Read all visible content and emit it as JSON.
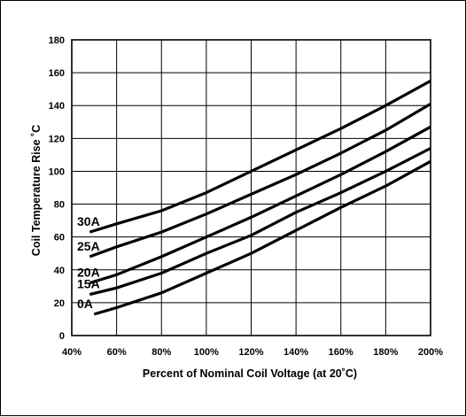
{
  "chart_data": {
    "type": "line",
    "title": "",
    "xlabel": "Percent of Nominal Coil Voltage (at 20˚C)",
    "ylabel": "Coil Temperature Rise ˚C",
    "x_ticks": [
      40,
      60,
      80,
      100,
      120,
      140,
      160,
      180,
      200
    ],
    "x_tick_labels": [
      "40%",
      "60%",
      "80%",
      "100%",
      "120%",
      "140%",
      "160%",
      "180%",
      "200%"
    ],
    "y_ticks": [
      0,
      20,
      40,
      60,
      80,
      100,
      120,
      140,
      160,
      180
    ],
    "y_tick_labels": [
      "0",
      "20",
      "40",
      "60",
      "80",
      "100",
      "120",
      "140",
      "160",
      "180"
    ],
    "xlim": [
      40,
      200
    ],
    "ylim": [
      0,
      180
    ],
    "grid": true,
    "legend": "none",
    "series": [
      {
        "name": "30A",
        "x": [
          48,
          60,
          80,
          100,
          120,
          140,
          160,
          180,
          200
        ],
        "y": [
          63,
          68,
          76,
          87,
          100,
          113,
          126,
          140,
          155
        ]
      },
      {
        "name": "25A",
        "x": [
          48,
          60,
          80,
          100,
          120,
          140,
          160,
          180,
          200
        ],
        "y": [
          48,
          54,
          63,
          74,
          86,
          98,
          111,
          125,
          141
        ]
      },
      {
        "name": "20A",
        "x": [
          48,
          60,
          80,
          100,
          120,
          140,
          160,
          180,
          200
        ],
        "y": [
          32,
          37,
          48,
          60,
          72,
          85,
          98,
          112,
          127
        ]
      },
      {
        "name": "15A",
        "x": [
          48,
          60,
          80,
          100,
          120,
          140,
          160,
          180,
          200
        ],
        "y": [
          25,
          29,
          38,
          50,
          61,
          75,
          87,
          100,
          114
        ]
      },
      {
        "name": "0A",
        "x": [
          50,
          60,
          80,
          100,
          120,
          140,
          160,
          180,
          200
        ],
        "y": [
          13,
          17,
          26,
          38,
          50,
          64,
          78,
          91,
          106
        ]
      }
    ]
  }
}
